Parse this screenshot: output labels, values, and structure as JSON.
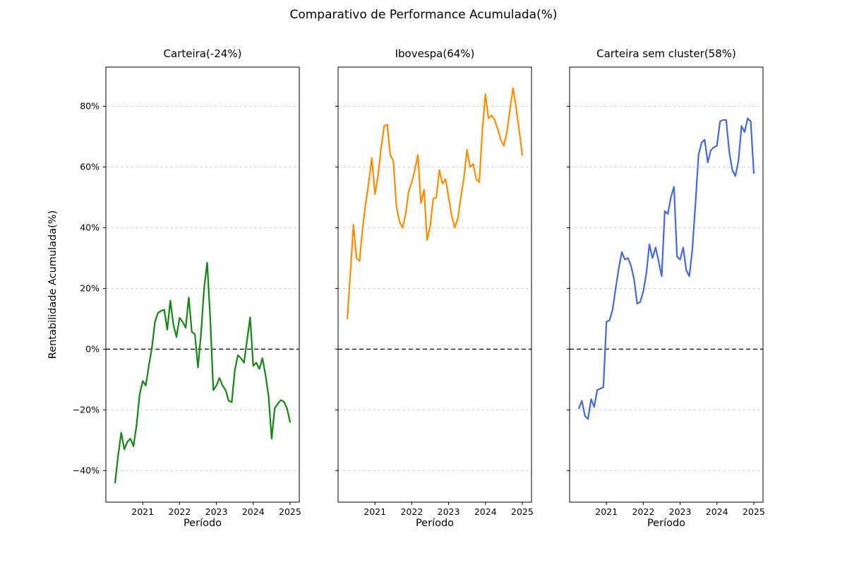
{
  "header": {
    "title": "Comparativo de Performance Acumulada(%)"
  },
  "axes": {
    "ylabel": "Rentabilidade Acumulada(%)",
    "xlabel": "Período",
    "y_ticks": [
      "80%",
      "60%",
      "40%",
      "20%",
      "0%",
      "−20%",
      "−40%"
    ],
    "y_tick_values": [
      80,
      60,
      40,
      20,
      0,
      -20,
      -40
    ],
    "x_ticks": [
      "2021",
      "2022",
      "2023",
      "2024",
      "2025"
    ],
    "x_tick_values": [
      2021,
      2022,
      2023,
      2024,
      2025
    ]
  },
  "panels": [
    {
      "title": "Carteira(-24%)"
    },
    {
      "title": "Ibovespa(64%)"
    },
    {
      "title": "Carteira sem cluster(58%)"
    }
  ],
  "chart_data": {
    "type": "line",
    "title": "Comparativo de Performance Acumulada(%)",
    "xlabel": "Período",
    "ylabel": "Rentabilidade Acumulada(%)",
    "grid": "horizontal, dashed, light-gray",
    "zero_line": "black dashed axhline at 0%",
    "legend_position": "none (one series per subplot, named in subplot title)",
    "xlim": [
      2020.0,
      2025.25
    ],
    "ylim": [
      -50.4,
      92.9
    ],
    "x_unit": "months",
    "months": [
      "2020-04",
      "2020-05",
      "2020-06",
      "2020-07",
      "2020-08",
      "2020-09",
      "2020-10",
      "2020-11",
      "2020-12",
      "2021-01",
      "2021-02",
      "2021-03",
      "2021-04",
      "2021-05",
      "2021-06",
      "2021-07",
      "2021-08",
      "2021-09",
      "2021-10",
      "2021-11",
      "2021-12",
      "2022-01",
      "2022-02",
      "2022-03",
      "2022-04",
      "2022-05",
      "2022-06",
      "2022-07",
      "2022-08",
      "2022-09",
      "2022-10",
      "2022-11",
      "2022-12",
      "2023-01",
      "2023-02",
      "2023-03",
      "2023-04",
      "2023-05",
      "2023-06",
      "2023-07",
      "2023-08",
      "2023-09",
      "2023-10",
      "2023-11",
      "2023-12",
      "2024-01",
      "2024-02",
      "2024-03",
      "2024-04",
      "2024-05",
      "2024-06",
      "2024-07",
      "2024-08",
      "2024-09",
      "2024-10",
      "2024-11",
      "2024-12",
      "2025-01"
    ],
    "series": [
      {
        "name": "Carteira",
        "final_return_label": "-24%",
        "color": "#128812",
        "values": [
          -44,
          -35,
          -27.5,
          -33,
          -30.5,
          -29.5,
          -32,
          -25,
          -15,
          -10.5,
          -12,
          -5.5,
          0.5,
          9,
          12,
          12.6,
          13,
          6.4,
          16,
          8,
          4,
          10.3,
          9,
          7,
          17,
          5.7,
          4.9,
          -6,
          5,
          20,
          28.5,
          10,
          -13.5,
          -12,
          -9.5,
          -12,
          -13.5,
          -17,
          -17.5,
          -7,
          -2,
          -3,
          -4.5,
          3,
          10.5,
          -5.5,
          -4.5,
          -6.5,
          -3,
          -8.5,
          -15.5,
          -29.5,
          -19.5,
          -18,
          -16.8,
          -17.3,
          -19.5,
          -24
        ]
      },
      {
        "name": "Ibovespa",
        "final_return_label": "64%",
        "color": "#ff8c00",
        "values": [
          10,
          25,
          41,
          30,
          29,
          40,
          48,
          55,
          63,
          51,
          57,
          66,
          73.5,
          74,
          64,
          62,
          47,
          42,
          40,
          44.5,
          52,
          55,
          59,
          64,
          48,
          52.5,
          36,
          40.5,
          49.5,
          50,
          59,
          54.5,
          56,
          50,
          44,
          40,
          43,
          50,
          56.5,
          65.7,
          60,
          61,
          56,
          55,
          72,
          84,
          76,
          77,
          75.5,
          72.5,
          69,
          67,
          71.5,
          79,
          86,
          79.5,
          72,
          64
        ]
      },
      {
        "name": "Carteira sem cluster",
        "final_return_label": "58%",
        "color": "#4169e1",
        "values": [
          -19.5,
          -17,
          -22,
          -23,
          -16.5,
          -19,
          -13.5,
          -13,
          -12.5,
          9,
          9.5,
          13,
          20,
          26.5,
          32,
          29.5,
          30,
          27.5,
          23,
          15,
          15.5,
          19,
          25,
          34.5,
          30,
          33.5,
          29,
          24,
          45.5,
          44.5,
          50,
          53.5,
          30.5,
          29.5,
          33.5,
          26,
          24,
          33,
          48,
          64,
          68,
          69,
          61.5,
          65.5,
          66.5,
          67,
          75,
          75.5,
          75.5,
          65,
          59,
          57,
          62,
          73.5,
          71.5,
          76,
          75,
          58
        ]
      }
    ]
  }
}
